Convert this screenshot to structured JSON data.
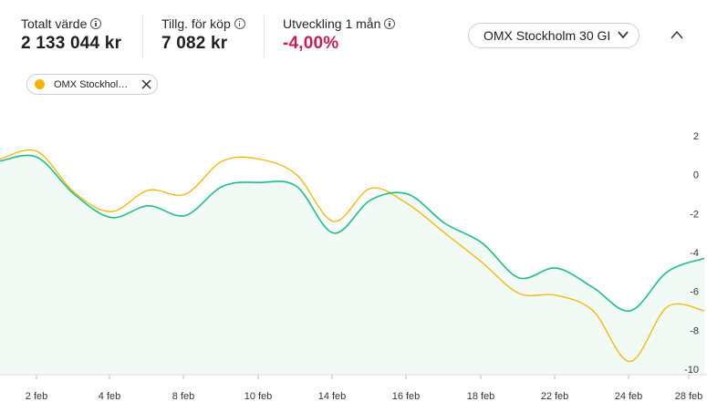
{
  "summary": {
    "total_label": "Totalt värde",
    "total_value": "2 133 044 kr",
    "available_label": "Tillg. för köp",
    "available_value": "7 082 kr",
    "change_label": "Utveckling 1 mån",
    "change_value": "-4,00%"
  },
  "index_selector": {
    "selected": "OMX Stockholm 30 GI"
  },
  "chip": {
    "label": "OMX Stockhol…"
  },
  "colors": {
    "portfolio_line": "#1dbf84",
    "portfolio_fill": "#f2faf6",
    "index_line": "#f5b400",
    "negative": "#c4204e"
  },
  "icons": {
    "info": "info-icon",
    "dropdown": "chevron-down-icon",
    "collapse": "chevron-up-icon",
    "chip_close": "close-icon"
  },
  "chart_data": {
    "type": "line",
    "x_tick_labels": [
      "2 feb",
      "4 feb",
      "8 feb",
      "10 feb",
      "14 feb",
      "16 feb",
      "18 feb",
      "22 feb",
      "24 feb",
      "28 feb"
    ],
    "ylim": [
      -10,
      2
    ],
    "y_ticks": [
      2,
      0,
      -2,
      -4,
      -6,
      -8,
      -10
    ],
    "legend_placement": "top-left",
    "series": [
      {
        "values": [
          0.7,
          0.9,
          -1.0,
          -2.2,
          -1.6,
          -2.1,
          -0.6,
          -0.4,
          -0.6,
          -3.0,
          -1.3,
          -1.0,
          -2.5,
          -3.5,
          -5.3,
          -4.8,
          -5.8,
          -7.0,
          -5.0,
          -4.3
        ]
      },
      {
        "name": "OMX Stockhol…",
        "values": [
          0.8,
          1.2,
          -0.9,
          -1.9,
          -0.8,
          -1.0,
          0.7,
          0.8,
          0.0,
          -2.4,
          -0.7,
          -1.5,
          -3.0,
          -4.5,
          -6.1,
          -6.2,
          -7.0,
          -9.6,
          -6.8,
          -7.0
        ]
      }
    ]
  }
}
